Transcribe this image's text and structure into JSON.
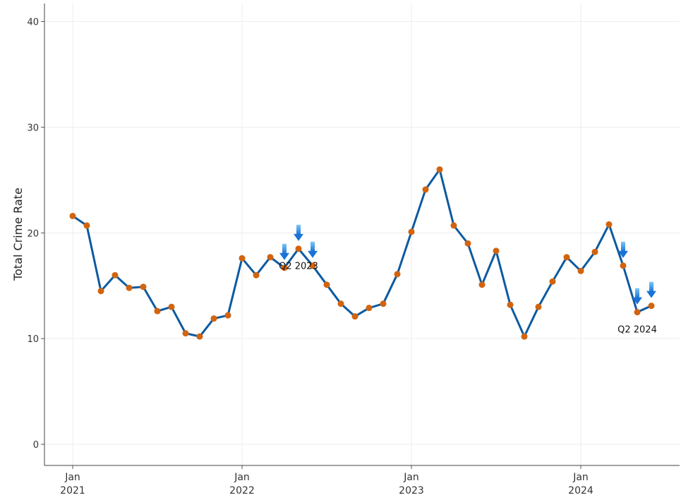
{
  "chart_data": {
    "type": "line",
    "y_label": "Total Crime Rate",
    "x": [
      "2021-01",
      "2021-02",
      "2021-03",
      "2021-04",
      "2021-05",
      "2021-06",
      "2021-07",
      "2021-08",
      "2021-09",
      "2021-10",
      "2021-11",
      "2021-12",
      "2022-01",
      "2022-02",
      "2022-03",
      "2022-04",
      "2022-05",
      "2022-06",
      "2022-07",
      "2022-08",
      "2022-09",
      "2022-10",
      "2022-11",
      "2022-12",
      "2023-01",
      "2023-02",
      "2023-03",
      "2023-04",
      "2023-05",
      "2023-06",
      "2023-07",
      "2023-08",
      "2023-09",
      "2023-10",
      "2023-11",
      "2023-12",
      "2024-01",
      "2024-02",
      "2024-03",
      "2024-04",
      "2024-05",
      "2024-06"
    ],
    "series": [
      {
        "name": "Total Crime Rate",
        "color": "#0d5aa0",
        "marker_color": "#d2640f",
        "values": [
          21.6,
          20.7,
          14.5,
          16.0,
          14.8,
          14.9,
          12.6,
          13.0,
          10.5,
          10.2,
          11.9,
          12.2,
          17.6,
          16.0,
          17.7,
          16.7,
          18.5,
          16.9,
          15.1,
          13.3,
          12.1,
          12.9,
          13.3,
          16.1,
          20.1,
          24.1,
          26.0,
          20.7,
          19.0,
          15.1,
          18.3,
          13.2,
          10.2,
          13.0,
          15.4,
          17.7,
          16.4,
          18.2,
          20.8,
          16.9,
          12.5,
          13.1
        ]
      }
    ],
    "xlim": [
      "2020-11",
      "2024-08"
    ],
    "xticks": [
      {
        "value": "2021-01",
        "label": "Jan\n2021"
      },
      {
        "value": "2022-01",
        "label": "Jan\n2022"
      },
      {
        "value": "2023-01",
        "label": "Jan\n2023"
      },
      {
        "value": "2024-01",
        "label": "Jan\n2024"
      }
    ],
    "ylim": [
      -2,
      41.7
    ],
    "yticks": [
      0,
      10,
      20,
      30,
      40
    ],
    "grid": true,
    "annotations": [
      {
        "text": "Q2 2023",
        "x": "2022-05"
      },
      {
        "text": "Q2 2024",
        "x": "2024-05"
      }
    ]
  }
}
